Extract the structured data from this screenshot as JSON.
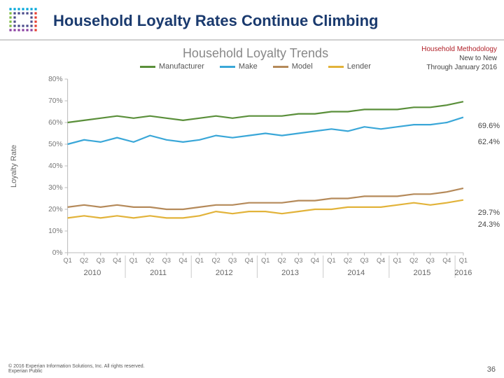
{
  "header": {
    "title": "Household Loyalty Rates Continue Climbing"
  },
  "logo": {
    "dots_color_top": "#00a5d9",
    "dots_color_right": "#e63b2e",
    "dots_color_bottom": "#8a3fa0",
    "dots_color_left": "#7fba42",
    "dots_fill": "#4a4a8a"
  },
  "meta": {
    "line1": "Household Methodology",
    "line2": "New to New",
    "line3": "Through January 2016"
  },
  "chart": {
    "type": "line",
    "title": "Household Loyalty Trends",
    "title_fontsize": 18,
    "title_color": "#888888",
    "ylabel": "Loyalty Rate",
    "label_fontsize": 11,
    "ylim": [
      0,
      80
    ],
    "ytick_step": 10,
    "ytick_suffix": "%",
    "background_color": "#ffffff",
    "axis_color": "#bbbbbb",
    "tick_text_color": "#777777",
    "x_quarters": [
      "Q1",
      "Q2",
      "Q3",
      "Q4",
      "Q1",
      "Q2",
      "Q3",
      "Q4",
      "Q1",
      "Q2",
      "Q3",
      "Q4",
      "Q1",
      "Q2",
      "Q3",
      "Q4",
      "Q1",
      "Q2",
      "Q3",
      "Q4",
      "Q1",
      "Q2",
      "Q3",
      "Q4",
      "Q1"
    ],
    "x_years": [
      "2010",
      "2011",
      "2012",
      "2013",
      "2014",
      "2015",
      "2016"
    ],
    "year_spans": [
      4,
      4,
      4,
      4,
      4,
      4,
      1
    ],
    "series": [
      {
        "name": "Manufacturer",
        "color": "#5a8f3a",
        "width": 2.2,
        "values": [
          60,
          61,
          62,
          63,
          62,
          63,
          62,
          61,
          62,
          63,
          62,
          63,
          63,
          63,
          64,
          64,
          65,
          65,
          66,
          66,
          66,
          67,
          67,
          68,
          69.6
        ],
        "end_label": "69.6%"
      },
      {
        "name": "Make",
        "color": "#3aa7d8",
        "width": 2.2,
        "values": [
          50,
          52,
          51,
          53,
          51,
          54,
          52,
          51,
          52,
          54,
          53,
          54,
          55,
          54,
          55,
          56,
          57,
          56,
          58,
          57,
          58,
          59,
          59,
          60,
          62.4
        ],
        "end_label": "62.4%"
      },
      {
        "name": "Model",
        "color": "#b58a5a",
        "width": 2.2,
        "values": [
          21,
          22,
          21,
          22,
          21,
          21,
          20,
          20,
          21,
          22,
          22,
          23,
          23,
          23,
          24,
          24,
          25,
          25,
          26,
          26,
          26,
          27,
          27,
          28,
          29.7
        ],
        "end_label": "29.7%"
      },
      {
        "name": "Lender",
        "color": "#e2b33a",
        "width": 2.2,
        "values": [
          16,
          17,
          16,
          17,
          16,
          17,
          16,
          16,
          17,
          19,
          18,
          19,
          19,
          18,
          19,
          20,
          20,
          21,
          21,
          21,
          22,
          23,
          22,
          23,
          24.3
        ],
        "end_label": "24.3%"
      }
    ]
  },
  "footer": {
    "copyright": "© 2016 Experian Information Solutions, Inc. All rights reserved.",
    "tag": "Experian Public",
    "page": "36"
  }
}
